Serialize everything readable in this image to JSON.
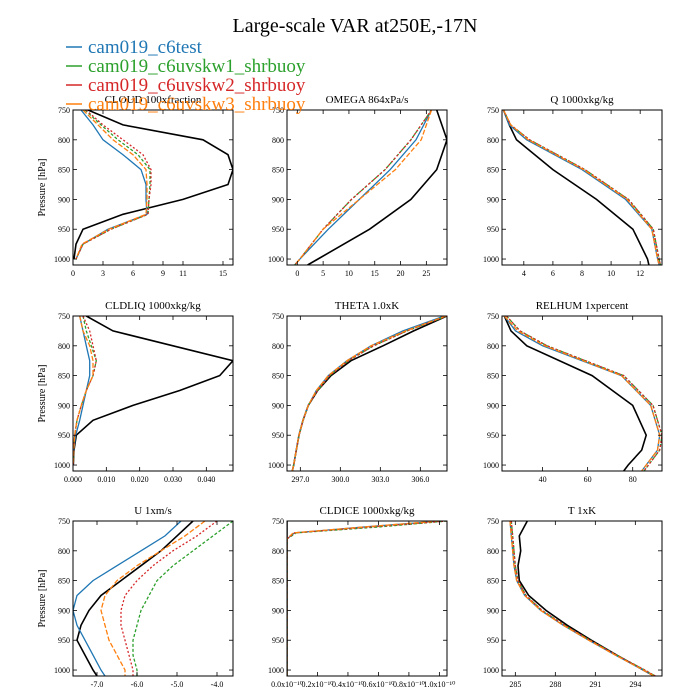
{
  "title": "Large-scale VAR at250E,-17N",
  "legend": [
    {
      "name": "cam019_c6test",
      "color": "#1f77b4"
    },
    {
      "name": "cam019_c6uvskw1_shrbuoy",
      "color": "#2ca02c"
    },
    {
      "name": "cam019_c6uvskw2_shrbuoy",
      "color": "#d62728"
    },
    {
      "name": "cam019_c6uvskw3_shrbuoy",
      "color": "#ff7f0e"
    }
  ],
  "chart_data": [
    {
      "type": "line",
      "title": "CLOUD 100xfraction",
      "ylabel": "Pressure [hPa]",
      "xlim": [
        0,
        16
      ],
      "ylim": [
        1010,
        750
      ],
      "xticks": [
        0,
        3,
        6,
        9,
        11,
        15
      ],
      "xticklabels": [
        "0",
        "3",
        "6",
        "9",
        "11",
        "15"
      ],
      "yticks": [
        750,
        800,
        850,
        900,
        950,
        1000
      ],
      "y": [
        750,
        775,
        800,
        825,
        850,
        875,
        900,
        925,
        950,
        975,
        1000
      ],
      "series": [
        {
          "color": "#000000",
          "dash": "",
          "x": [
            1.5,
            5,
            13,
            15.5,
            16,
            15.5,
            11,
            5,
            1,
            0.3,
            0.1
          ]
        },
        {
          "color": "#1f77b4",
          "dash": "",
          "x": [
            0.8,
            2,
            3,
            5,
            6.8,
            7.3,
            7.3,
            7.4,
            3.5,
            1,
            0.3
          ]
        },
        {
          "color": "#2ca02c",
          "dash": "3 2",
          "x": [
            1.2,
            2.8,
            4.5,
            6.5,
            7.7,
            7.7,
            7.6,
            7.5,
            3.8,
            1,
            0.3
          ]
        },
        {
          "color": "#d62728",
          "dash": "2 2",
          "x": [
            1.3,
            3,
            5,
            7,
            7.8,
            7.8,
            7.6,
            7.5,
            3.8,
            1,
            0.3
          ]
        },
        {
          "color": "#ff7f0e",
          "dash": "5 2",
          "x": [
            1,
            2.5,
            4,
            6,
            7.3,
            7.4,
            7.4,
            7.3,
            3.6,
            0.9,
            0.3
          ]
        }
      ]
    },
    {
      "type": "line",
      "title": "OMEGA 864xPa/s",
      "ylabel": "",
      "xlim": [
        -2,
        29
      ],
      "ylim": [
        1010,
        750
      ],
      "xticks": [
        0,
        5,
        10,
        15,
        20,
        25
      ],
      "xticklabels": [
        "0",
        "5",
        "10",
        "15",
        "20",
        "25"
      ],
      "yticks": [
        750,
        800,
        850,
        900,
        950,
        1000
      ],
      "y": [
        750,
        800,
        850,
        900,
        950,
        1000,
        1010
      ],
      "series": [
        {
          "color": "#000000",
          "dash": "",
          "x": [
            27,
            29,
            27,
            22,
            14,
            4,
            2
          ]
        },
        {
          "color": "#1f77b4",
          "dash": "",
          "x": [
            26,
            23,
            18,
            12,
            6,
            0.5,
            -0.5
          ]
        },
        {
          "color": "#2ca02c",
          "dash": "3 2",
          "x": [
            26,
            22,
            17,
            10.5,
            5,
            0.5,
            -0.5
          ]
        },
        {
          "color": "#d62728",
          "dash": "2 2",
          "x": [
            26,
            22,
            17,
            10.5,
            5,
            0.5,
            -0.5
          ]
        },
        {
          "color": "#ff7f0e",
          "dash": "5 2",
          "x": [
            26,
            24,
            19,
            12,
            5,
            0.5,
            -0.5
          ]
        }
      ]
    },
    {
      "type": "line",
      "title": "Q 1000xkg/kg",
      "ylabel": "",
      "xlim": [
        2.5,
        13.5
      ],
      "ylim": [
        1010,
        750
      ],
      "xticks": [
        4,
        6,
        8,
        10,
        12
      ],
      "xticklabels": [
        "4",
        "6",
        "8",
        "10",
        "12"
      ],
      "yticks": [
        750,
        800,
        850,
        900,
        950,
        1000
      ],
      "y": [
        750,
        775,
        800,
        850,
        900,
        950,
        1000,
        1010
      ],
      "series": [
        {
          "color": "#000000",
          "dash": "",
          "x": [
            2.6,
            3,
            3.5,
            6,
            9,
            11.5,
            12.5,
            12.6
          ]
        },
        {
          "color": "#1f77b4",
          "dash": "",
          "x": [
            2.6,
            3,
            4.2,
            8,
            11,
            12.8,
            13.2,
            13.3
          ]
        },
        {
          "color": "#2ca02c",
          "dash": "3 2",
          "x": [
            2.6,
            3.1,
            4.4,
            8.2,
            11.2,
            12.9,
            13.3,
            13.4
          ]
        },
        {
          "color": "#d62728",
          "dash": "2 2",
          "x": [
            2.6,
            3.1,
            4.4,
            8.2,
            11.2,
            12.9,
            13.3,
            13.4
          ]
        },
        {
          "color": "#ff7f0e",
          "dash": "5 2",
          "x": [
            2.6,
            3.1,
            4.3,
            8.1,
            11.1,
            12.8,
            13.2,
            13.3
          ]
        }
      ]
    },
    {
      "type": "line",
      "title": "CLDLIQ 1000xkg/kg",
      "ylabel": "Pressure [hPa]",
      "xlim": [
        0,
        0.048
      ],
      "ylim": [
        1010,
        750
      ],
      "xticks": [
        0,
        0.01,
        0.02,
        0.03,
        0.04
      ],
      "xticklabels": [
        "0.000",
        "0.010",
        "0.020",
        "0.030",
        "0.040"
      ],
      "yticks": [
        750,
        800,
        850,
        900,
        950,
        1000
      ],
      "y": [
        750,
        775,
        800,
        825,
        850,
        875,
        900,
        925,
        950,
        975,
        1000
      ],
      "series": [
        {
          "color": "#000000",
          "dash": "",
          "x": [
            0.004,
            0.012,
            0.03,
            0.048,
            0.044,
            0.032,
            0.018,
            0.006,
            0.001,
            0.0003,
            0.0001
          ]
        },
        {
          "color": "#1f77b4",
          "dash": "",
          "x": [
            0.002,
            0.003,
            0.004,
            0.005,
            0.005,
            0.004,
            0.003,
            0.002,
            0.0008,
            0.0002,
            0.0001
          ]
        },
        {
          "color": "#2ca02c",
          "dash": "3 2",
          "x": [
            0.003,
            0.004,
            0.0055,
            0.007,
            0.006,
            0.004,
            0.0025,
            0.0012,
            0.0005,
            0.0002,
            0.0001
          ]
        },
        {
          "color": "#d62728",
          "dash": "2 2",
          "x": [
            0.003,
            0.005,
            0.006,
            0.007,
            0.006,
            0.004,
            0.0025,
            0.0012,
            0.0005,
            0.0002,
            0.0001
          ]
        },
        {
          "color": "#ff7f0e",
          "dash": "5 2",
          "x": [
            0.002,
            0.003,
            0.005,
            0.006,
            0.006,
            0.004,
            0.0025,
            0.0012,
            0.0005,
            0.0002,
            0.0001
          ]
        }
      ]
    },
    {
      "type": "line",
      "title": "THETA 1.0xK",
      "ylabel": "",
      "xlim": [
        296,
        308
      ],
      "ylim": [
        1010,
        750
      ],
      "xticks": [
        297,
        300,
        303,
        306
      ],
      "xticklabels": [
        "297.0",
        "300.0",
        "303.0",
        "306.0"
      ],
      "yticks": [
        750,
        800,
        850,
        900,
        950,
        1000
      ],
      "y": [
        750,
        775,
        800,
        825,
        850,
        875,
        900,
        925,
        950,
        975,
        1000,
        1010
      ],
      "series": [
        {
          "color": "#000000",
          "dash": "",
          "x": [
            308,
            305.5,
            303.2,
            300.8,
            299.3,
            298.3,
            297.6,
            297.2,
            296.9,
            296.7,
            296.5,
            296.4
          ]
        },
        {
          "color": "#1f77b4",
          "dash": "",
          "x": [
            307.8,
            304.7,
            302.3,
            300.5,
            299.1,
            298.2,
            297.6,
            297.2,
            296.9,
            296.7,
            296.5,
            296.4
          ]
        },
        {
          "color": "#2ca02c",
          "dash": "3 2",
          "x": [
            308,
            305,
            302.5,
            300.6,
            299.2,
            298.3,
            297.6,
            297.2,
            296.9,
            296.7,
            296.5,
            296.4
          ]
        },
        {
          "color": "#d62728",
          "dash": "2 2",
          "x": [
            308,
            305,
            302.5,
            300.6,
            299.2,
            298.3,
            297.6,
            297.2,
            296.9,
            296.7,
            296.5,
            296.4
          ]
        },
        {
          "color": "#ff7f0e",
          "dash": "5 2",
          "x": [
            307.9,
            304.9,
            302.3,
            300.5,
            299.1,
            298.2,
            297.6,
            297.2,
            296.9,
            296.7,
            296.5,
            296.4
          ]
        }
      ]
    },
    {
      "type": "line",
      "title": "RELHUM 1xpercent",
      "ylabel": "",
      "xlim": [
        22,
        93
      ],
      "ylim": [
        1010,
        750
      ],
      "xticks": [
        40,
        60,
        80
      ],
      "xticklabels": [
        "40",
        "60",
        "80"
      ],
      "yticks": [
        750,
        800,
        850,
        900,
        950,
        1000
      ],
      "y": [
        750,
        775,
        800,
        850,
        900,
        950,
        975,
        1000,
        1010
      ],
      "series": [
        {
          "color": "#000000",
          "dash": "",
          "x": [
            23,
            26,
            33,
            62,
            80,
            86,
            84,
            78,
            76
          ]
        },
        {
          "color": "#1f77b4",
          "dash": "",
          "x": [
            23,
            28,
            40,
            75,
            88,
            92,
            91,
            86,
            84
          ]
        },
        {
          "color": "#2ca02c",
          "dash": "3 2",
          "x": [
            24,
            30,
            42,
            76,
            89,
            93,
            92,
            87,
            85
          ]
        },
        {
          "color": "#d62728",
          "dash": "2 2",
          "x": [
            24,
            30,
            42,
            76,
            89,
            93,
            92,
            87,
            85
          ]
        },
        {
          "color": "#ff7f0e",
          "dash": "5 2",
          "x": [
            23,
            29,
            41,
            75,
            88,
            92,
            91,
            86,
            84
          ]
        }
      ]
    },
    {
      "type": "line",
      "title": "U 1xm/s",
      "ylabel": "Pressure [hPa]",
      "xlim": [
        -7.6,
        -3.6
      ],
      "ylim": [
        1010,
        750
      ],
      "xticks": [
        -7,
        -6,
        -5,
        -4
      ],
      "xticklabels": [
        "-7.0",
        "-6.0",
        "-5.0",
        "-4.0"
      ],
      "yticks": [
        750,
        800,
        850,
        900,
        950,
        1000
      ],
      "y": [
        750,
        775,
        800,
        825,
        850,
        875,
        900,
        925,
        950,
        975,
        1000,
        1010
      ],
      "series": [
        {
          "color": "#000000",
          "dash": "",
          "x": [
            -4.6,
            -5.0,
            -5.4,
            -5.9,
            -6.4,
            -6.9,
            -7.2,
            -7.4,
            -7.5,
            -7.3,
            -7.1,
            -7.0
          ]
        },
        {
          "color": "#1f77b4",
          "dash": "",
          "x": [
            -4.9,
            -5.3,
            -5.9,
            -6.5,
            -7.1,
            -7.5,
            -7.6,
            -7.5,
            -7.3,
            -7.1,
            -6.9,
            -6.8
          ]
        },
        {
          "color": "#2ca02c",
          "dash": "3 2",
          "x": [
            -3.6,
            -4.1,
            -4.6,
            -5.1,
            -5.5,
            -5.7,
            -5.9,
            -6.0,
            -6.1,
            -6.1,
            -6.0,
            -6.0
          ]
        },
        {
          "color": "#d62728",
          "dash": "2 2",
          "x": [
            -4.0,
            -4.5,
            -5.1,
            -5.6,
            -6.0,
            -6.3,
            -6.4,
            -6.4,
            -6.3,
            -6.2,
            -6.1,
            -6.1
          ]
        },
        {
          "color": "#ff7f0e",
          "dash": "5 2",
          "x": [
            -4.3,
            -4.8,
            -5.4,
            -6.0,
            -6.5,
            -6.8,
            -6.9,
            -6.8,
            -6.7,
            -6.5,
            -6.3,
            -6.3
          ]
        }
      ]
    },
    {
      "type": "line",
      "title": "CLDICE 1000xkg/kg",
      "ylabel": "",
      "xlim": [
        0,
        1.05
      ],
      "ylim": [
        1010,
        750
      ],
      "xticks": [
        0,
        0.2,
        0.4,
        0.6,
        0.8,
        1.0
      ],
      "xticklabels": [
        "0.0x10⁻¹⁰",
        "0.2x10⁻¹⁰",
        "0.4x10⁻¹⁰",
        "0.6x10⁻¹⁰",
        "0.8x10⁻¹⁰",
        "1.0x10⁻¹⁰"
      ],
      "yticks": [
        750,
        800,
        850,
        900,
        950,
        1000
      ],
      "y": [
        750,
        760,
        770,
        780,
        800,
        850,
        1000,
        1010
      ],
      "series": [
        {
          "color": "#000000",
          "dash": "",
          "x": [
            0,
            0,
            0,
            0,
            0,
            0,
            0,
            0
          ]
        },
        {
          "color": "#1f77b4",
          "dash": "",
          "x": [
            1.02,
            0.5,
            0.05,
            0,
            0,
            0,
            0,
            0
          ]
        },
        {
          "color": "#2ca02c",
          "dash": "3 2",
          "x": [
            1.05,
            0.6,
            0.06,
            0,
            0,
            0,
            0,
            0
          ]
        },
        {
          "color": "#d62728",
          "dash": "2 2",
          "x": [
            1.05,
            0.55,
            0.05,
            0,
            0,
            0,
            0,
            0
          ]
        },
        {
          "color": "#ff7f0e",
          "dash": "5 2",
          "x": [
            1.0,
            0.5,
            0.04,
            0,
            0,
            0,
            0,
            0
          ]
        }
      ]
    },
    {
      "type": "line",
      "title": "T 1xK",
      "ylabel": "",
      "xlim": [
        284,
        296
      ],
      "ylim": [
        1010,
        750
      ],
      "xticks": [
        285,
        288,
        291,
        294
      ],
      "xticklabels": [
        "285",
        "288",
        "291",
        "294"
      ],
      "yticks": [
        750,
        800,
        850,
        900,
        950,
        1000
      ],
      "y": [
        750,
        775,
        800,
        825,
        850,
        875,
        900,
        925,
        950,
        975,
        1000,
        1010
      ],
      "series": [
        {
          "color": "#000000",
          "dash": "",
          "x": [
            285.9,
            285.3,
            285.4,
            285.2,
            285.3,
            286.0,
            287.3,
            288.9,
            290.7,
            292.6,
            294.6,
            295.4
          ]
        },
        {
          "color": "#1f77b4",
          "dash": "",
          "x": [
            284.6,
            284.7,
            284.8,
            284.9,
            285.1,
            285.7,
            286.9,
            288.6,
            290.5,
            292.5,
            294.6,
            295.4
          ]
        },
        {
          "color": "#2ca02c",
          "dash": "3 2",
          "x": [
            284.7,
            284.8,
            284.9,
            285.0,
            285.2,
            285.8,
            287.0,
            288.7,
            290.6,
            292.6,
            294.7,
            295.5
          ]
        },
        {
          "color": "#d62728",
          "dash": "2 2",
          "x": [
            284.7,
            284.8,
            284.9,
            285.0,
            285.2,
            285.8,
            287.0,
            288.7,
            290.6,
            292.6,
            294.7,
            295.5
          ]
        },
        {
          "color": "#ff7f0e",
          "dash": "5 2",
          "x": [
            284.6,
            284.7,
            284.8,
            284.9,
            285.1,
            285.7,
            286.9,
            288.6,
            290.5,
            292.5,
            294.6,
            295.4
          ]
        }
      ]
    }
  ]
}
